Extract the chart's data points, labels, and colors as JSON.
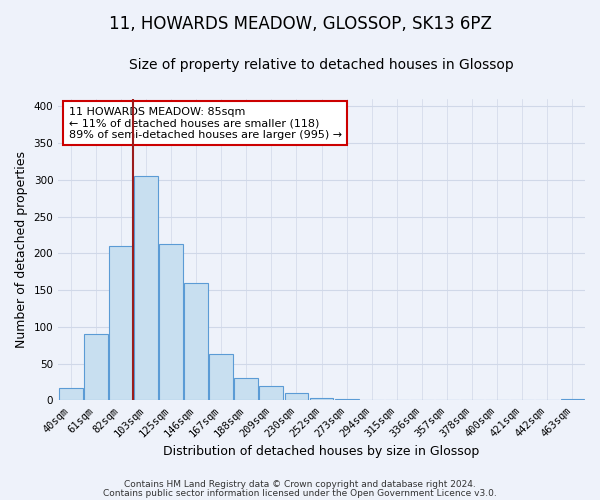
{
  "title": "11, HOWARDS MEADOW, GLOSSOP, SK13 6PZ",
  "subtitle": "Size of property relative to detached houses in Glossop",
  "xlabel": "Distribution of detached houses by size in Glossop",
  "ylabel": "Number of detached properties",
  "categories": [
    "40sqm",
    "61sqm",
    "82sqm",
    "103sqm",
    "125sqm",
    "146sqm",
    "167sqm",
    "188sqm",
    "209sqm",
    "230sqm",
    "252sqm",
    "273sqm",
    "294sqm",
    "315sqm",
    "336sqm",
    "357sqm",
    "378sqm",
    "400sqm",
    "421sqm",
    "442sqm",
    "463sqm"
  ],
  "values": [
    17,
    90,
    210,
    305,
    213,
    160,
    63,
    31,
    20,
    10,
    4,
    2,
    1,
    0,
    0,
    1,
    0,
    0,
    0,
    0,
    2
  ],
  "bar_color": "#c8dff0",
  "bar_edge_color": "#5b9bd5",
  "vline_x_index": 3,
  "vline_color": "#9b1c1c",
  "annotation_title": "11 HOWARDS MEADOW: 85sqm",
  "annotation_line1": "← 11% of detached houses are smaller (118)",
  "annotation_line2": "89% of semi-detached houses are larger (995) →",
  "annotation_box_color": "#ffffff",
  "annotation_box_edge": "#cc0000",
  "ylim": [
    0,
    410
  ],
  "yticks": [
    0,
    50,
    100,
    150,
    200,
    250,
    300,
    350,
    400
  ],
  "footer_line1": "Contains HM Land Registry data © Crown copyright and database right 2024.",
  "footer_line2": "Contains public sector information licensed under the Open Government Licence v3.0.",
  "title_fontsize": 12,
  "subtitle_fontsize": 10,
  "axis_label_fontsize": 9,
  "tick_fontsize": 7.5,
  "annotation_fontsize": 8,
  "footer_fontsize": 6.5,
  "background_color": "#eef2fa",
  "grid_color": "#d0d8e8"
}
